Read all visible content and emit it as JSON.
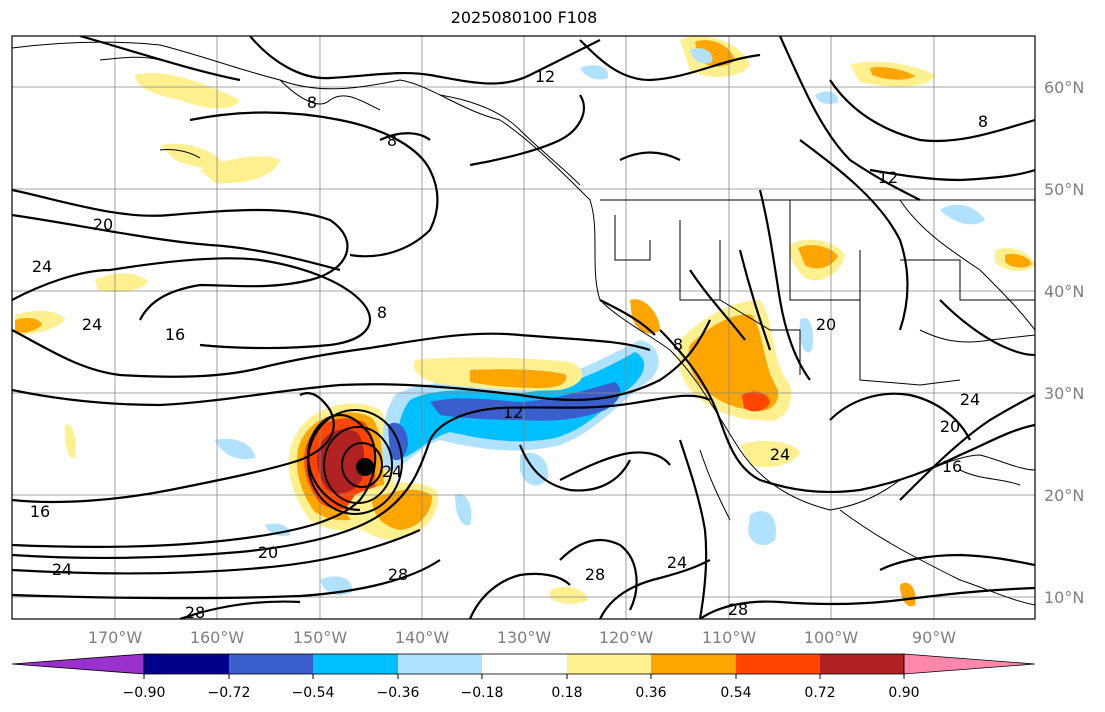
{
  "title": "2025080100 F108",
  "lat_labels": [
    "60°N",
    "50°N",
    "40°N",
    "30°N",
    "20°N",
    "10°N"
  ],
  "lon_labels": [
    "170°W",
    "160°W",
    "150°W",
    "140°W",
    "130°W",
    "120°W",
    "110°W",
    "100°W",
    "90°W"
  ],
  "contour_labels": [
    "12",
    "8",
    "8",
    "8",
    "20",
    "24",
    "24",
    "16",
    "8",
    "12",
    "20",
    "24",
    "24",
    "24",
    "12",
    "16",
    "20",
    "24",
    "28",
    "28",
    "20",
    "28",
    "16",
    "24",
    "28",
    "8"
  ],
  "colorbar": {
    "colors": [
      "#9932cc",
      "#00008b",
      "#3a5fcd",
      "#00bfff",
      "#b0e2ff",
      "#ffffff",
      "#fff08f",
      "#ffa500",
      "#ff4500",
      "#b22222",
      "#ff88aa"
    ],
    "tick_labels": [
      "−0.90",
      "−0.72",
      "−0.54",
      "−0.36",
      "−0.18",
      "0.18",
      "0.36",
      "0.54",
      "0.72",
      "0.90"
    ]
  }
}
